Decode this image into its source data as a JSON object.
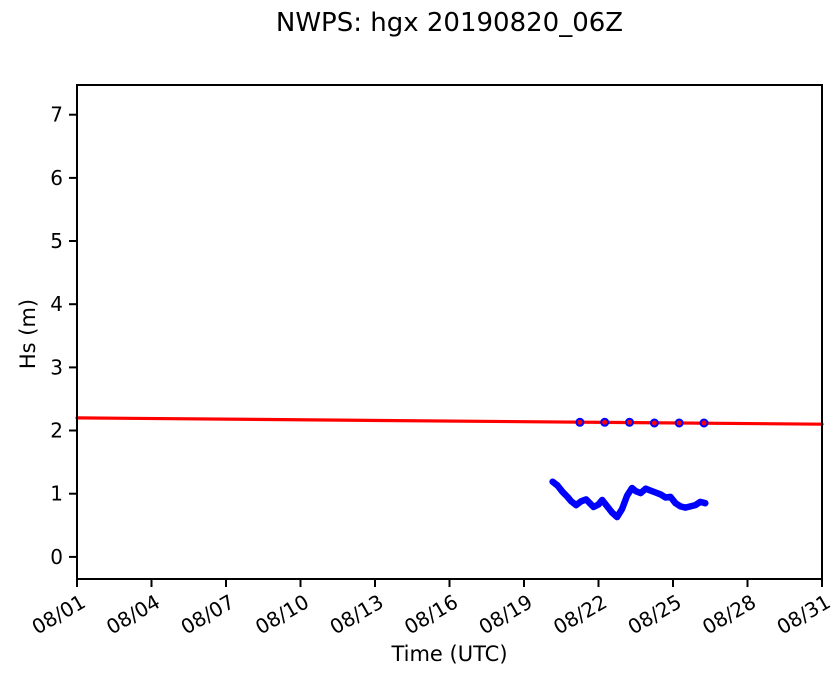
{
  "figure": {
    "background": "#ffffff",
    "axis_color": "#000000"
  },
  "chart_data": {
    "type": "line",
    "title": "NWPS: hgx 20190820_06Z",
    "xlabel": "Time (UTC)",
    "ylabel": "Hs (m)",
    "xlim_days": [
      1,
      31
    ],
    "ylim": [
      -0.35,
      7.47
    ],
    "grid": false,
    "legend_position": "none",
    "x_tick_rotation_deg": 30,
    "yticks": [
      "0",
      "1",
      "2",
      "3",
      "4",
      "5",
      "6",
      "7"
    ],
    "ytick_values": [
      0,
      1,
      2,
      3,
      4,
      5,
      6,
      7
    ],
    "xticks": [
      {
        "day": 1,
        "label": "08/01"
      },
      {
        "day": 4,
        "label": "08/04"
      },
      {
        "day": 7,
        "label": "08/07"
      },
      {
        "day": 10,
        "label": "08/10"
      },
      {
        "day": 13,
        "label": "08/13"
      },
      {
        "day": 16,
        "label": "08/16"
      },
      {
        "day": 19,
        "label": "08/19"
      },
      {
        "day": 22,
        "label": "08/22"
      },
      {
        "day": 25,
        "label": "08/25"
      },
      {
        "day": 28,
        "label": "08/28"
      },
      {
        "day": 31,
        "label": "08/31"
      }
    ],
    "series": [
      {
        "name": "forecast-guidance-line",
        "type": "line",
        "color": "#ff0000",
        "line_width": 3.2,
        "points": [
          [
            1,
            2.2
          ],
          [
            31,
            2.1
          ]
        ]
      },
      {
        "name": "forecast-daily-markers",
        "type": "scatter",
        "marker": "circle",
        "fill_color": "#ff0000",
        "edge_color": "#0000ff",
        "edge_width": 2,
        "marker_radius": 3.5,
        "points": [
          [
            21.25,
            2.13
          ],
          [
            22.25,
            2.13
          ],
          [
            23.25,
            2.13
          ],
          [
            24.25,
            2.12
          ],
          [
            25.25,
            2.12
          ],
          [
            26.25,
            2.12
          ]
        ]
      },
      {
        "name": "observed-hs-line",
        "type": "line",
        "color": "#0000ff",
        "line_width": 6.5,
        "points": [
          [
            20.15,
            1.19
          ],
          [
            20.35,
            1.13
          ],
          [
            20.55,
            1.03
          ],
          [
            20.75,
            0.95
          ],
          [
            20.9,
            0.88
          ],
          [
            21.1,
            0.82
          ],
          [
            21.3,
            0.88
          ],
          [
            21.5,
            0.91
          ],
          [
            21.65,
            0.85
          ],
          [
            21.8,
            0.79
          ],
          [
            22.0,
            0.83
          ],
          [
            22.15,
            0.9
          ],
          [
            22.35,
            0.8
          ],
          [
            22.55,
            0.7
          ],
          [
            22.75,
            0.63
          ],
          [
            22.95,
            0.76
          ],
          [
            23.15,
            0.97
          ],
          [
            23.35,
            1.09
          ],
          [
            23.5,
            1.04
          ],
          [
            23.7,
            1.01
          ],
          [
            23.9,
            1.08
          ],
          [
            24.1,
            1.05
          ],
          [
            24.3,
            1.02
          ],
          [
            24.5,
            0.99
          ],
          [
            24.7,
            0.94
          ],
          [
            24.9,
            0.95
          ],
          [
            25.1,
            0.85
          ],
          [
            25.3,
            0.8
          ],
          [
            25.5,
            0.78
          ],
          [
            25.7,
            0.8
          ],
          [
            25.9,
            0.82
          ],
          [
            26.1,
            0.87
          ],
          [
            26.3,
            0.85
          ]
        ]
      }
    ]
  }
}
